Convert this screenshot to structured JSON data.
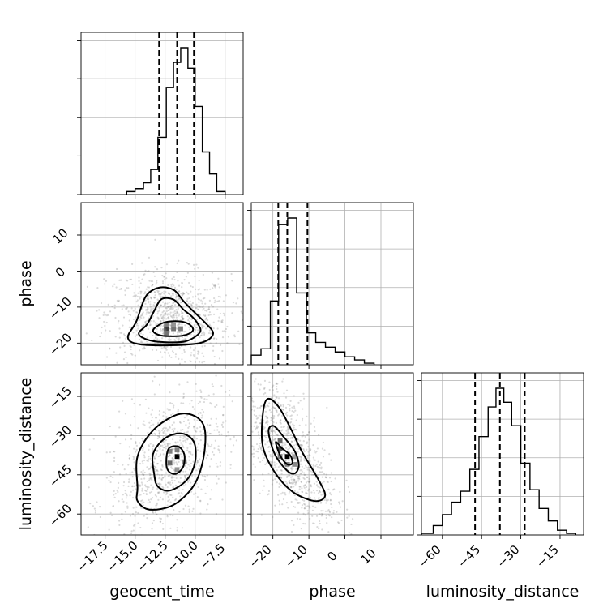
{
  "chart_data": {
    "type": "scatter",
    "variant": "corner",
    "grid": true,
    "parameters": [
      {
        "key": "geocent_time",
        "label": "geocent_time",
        "range": [
          -19.5,
          -6.0
        ],
        "ticks": [
          -17.5,
          -15.0,
          -12.5,
          -10.0,
          -7.5
        ],
        "tick_labels": [
          "−17.5",
          "−15.0",
          "−12.5",
          "−10.0",
          "−7.5"
        ],
        "quantiles": [
          -13.0,
          -11.5,
          -10.1
        ],
        "hist": {
          "bin_edges": [
            -15.7,
            -15.0,
            -14.3,
            -13.7,
            -13.1,
            -12.4,
            -11.8,
            -11.2,
            -10.6,
            -10.0,
            -9.4,
            -8.8,
            -8.2,
            -7.5
          ],
          "counts": [
            0.02,
            0.04,
            0.08,
            0.17,
            0.39,
            0.73,
            0.9,
            1.0,
            0.86,
            0.6,
            0.29,
            0.14,
            0.02
          ]
        }
      },
      {
        "key": "phase",
        "label": "phase",
        "range": [
          -26.0,
          19.0
        ],
        "ticks": [
          -20,
          -10,
          0,
          10
        ],
        "tick_labels": [
          "−20",
          "−10",
          "0",
          "10"
        ],
        "quantiles": [
          -18.5,
          -16.0,
          -10.4
        ],
        "hist": {
          "bin_edges": [
            -26.0,
            -23.3,
            -20.7,
            -18.4,
            -15.9,
            -13.4,
            -10.7,
            -8.1,
            -5.4,
            -2.7,
            0.0,
            2.7,
            5.4,
            8.1
          ],
          "counts": [
            0.06,
            0.1,
            0.4,
            0.88,
            0.92,
            0.45,
            0.2,
            0.14,
            0.11,
            0.08,
            0.05,
            0.03,
            0.01
          ]
        }
      },
      {
        "key": "luminosity_distance",
        "label": "luminosity_distance",
        "range": [
          -68.0,
          -6.0
        ],
        "ticks": [
          -60,
          -45,
          -30,
          -15
        ],
        "tick_labels": [
          "−60",
          "−45",
          "−30",
          "−15"
        ],
        "quantiles": [
          -47.5,
          -38.0,
          -28.5
        ],
        "hist": {
          "bin_edges": [
            -68.0,
            -63.5,
            -60.0,
            -56.5,
            -53.0,
            -49.5,
            -46.0,
            -42.5,
            -39.5,
            -36.5,
            -33.5,
            -30.0,
            -26.5,
            -23.0,
            -19.5,
            -16.0,
            -12.5,
            -9.0
          ],
          "counts": [
            0.01,
            0.06,
            0.13,
            0.21,
            0.28,
            0.42,
            0.63,
            0.82,
            0.94,
            0.85,
            0.7,
            0.46,
            0.29,
            0.17,
            0.09,
            0.03,
            0.01
          ]
        }
      }
    ],
    "pairs": [
      {
        "x": "geocent_time",
        "y": "phase",
        "contours": [
          {
            "level": 1,
            "path": [
              [
                -13.4,
                -15.9
              ],
              [
                -12.5,
                -14.2
              ],
              [
                -11.2,
                -14.0
              ],
              [
                -10.4,
                -15.0
              ],
              [
                -10.2,
                -16.6
              ],
              [
                -11.0,
                -17.9
              ],
              [
                -12.6,
                -18.0
              ],
              [
                -13.4,
                -17.1
              ],
              [
                -13.4,
                -15.9
              ]
            ]
          },
          {
            "level": 2,
            "path": [
              [
                -13.4,
                -11.0
              ],
              [
                -12.8,
                -7.8
              ],
              [
                -11.8,
                -7.9
              ],
              [
                -11.0,
                -10.6
              ],
              [
                -10.3,
                -12.5
              ],
              [
                -9.8,
                -14.5
              ],
              [
                -9.6,
                -17.0
              ],
              [
                -10.8,
                -19.5
              ],
              [
                -12.7,
                -19.7
              ],
              [
                -14.0,
                -19.0
              ],
              [
                -14.7,
                -17.3
              ],
              [
                -14.0,
                -14.8
              ],
              [
                -13.4,
                -11.0
              ]
            ]
          },
          {
            "level": 3,
            "path": [
              [
                -14.1,
                -7.0
              ],
              [
                -13.0,
                -4.6
              ],
              [
                -11.8,
                -5.2
              ],
              [
                -11.0,
                -8.2
              ],
              [
                -10.2,
                -11.0
              ],
              [
                -9.2,
                -14.2
              ],
              [
                -8.5,
                -17.4
              ],
              [
                -9.5,
                -19.9
              ],
              [
                -12.0,
                -20.6
              ],
              [
                -14.7,
                -20.3
              ],
              [
                -15.6,
                -18.4
              ],
              [
                -14.9,
                -14.0
              ],
              [
                -14.1,
                -7.0
              ]
            ]
          }
        ],
        "density_bins": [
          {
            "x": -11.8,
            "y": -16.0,
            "w": 0.5
          },
          {
            "x": -12.4,
            "y": -16.0,
            "w": 0.75
          },
          {
            "x": -12.4,
            "y": -14.9,
            "w": 0.45
          },
          {
            "x": -11.8,
            "y": -14.9,
            "w": 0.35
          },
          {
            "x": -11.2,
            "y": -16.0,
            "w": 0.45
          },
          {
            "x": -12.4,
            "y": -17.2,
            "w": 0.5
          }
        ]
      },
      {
        "x": "geocent_time",
        "y": "luminosity_distance",
        "contours": [
          {
            "level": 1,
            "path": [
              [
                -12.4,
                -40.5
              ],
              [
                -12.2,
                -35.0
              ],
              [
                -11.4,
                -34.2
              ],
              [
                -10.9,
                -37.2
              ],
              [
                -11.0,
                -42.0
              ],
              [
                -11.6,
                -44.6
              ],
              [
                -12.2,
                -43.7
              ],
              [
                -12.4,
                -40.5
              ]
            ]
          },
          {
            "level": 2,
            "path": [
              [
                -13.4,
                -45.0
              ],
              [
                -13.5,
                -37.0
              ],
              [
                -12.5,
                -31.0
              ],
              [
                -11.1,
                -29.2
              ],
              [
                -10.1,
                -32.5
              ],
              [
                -10.0,
                -40.0
              ],
              [
                -10.7,
                -47.0
              ],
              [
                -12.1,
                -51.0
              ],
              [
                -13.1,
                -49.5
              ],
              [
                -13.4,
                -45.0
              ]
            ]
          },
          {
            "level": 3,
            "path": [
              [
                -14.8,
                -50.0
              ],
              [
                -14.8,
                -38.0
              ],
              [
                -13.5,
                -28.0
              ],
              [
                -11.5,
                -22.0
              ],
              [
                -10.0,
                -22.6
              ],
              [
                -9.2,
                -27.5
              ],
              [
                -9.3,
                -38.5
              ],
              [
                -10.1,
                -49.0
              ],
              [
                -11.8,
                -56.5
              ],
              [
                -13.8,
                -58.3
              ],
              [
                -14.8,
                -55.0
              ],
              [
                -14.8,
                -50.0
              ]
            ]
          }
        ],
        "density_bins": [
          {
            "x": -11.5,
            "y": -38.0,
            "w": 1.0
          },
          {
            "x": -12.1,
            "y": -40.5,
            "w": 0.55
          },
          {
            "x": -11.5,
            "y": -35.5,
            "w": 0.45
          },
          {
            "x": -12.1,
            "y": -36.0,
            "w": 0.45
          },
          {
            "x": -10.9,
            "y": -40.0,
            "w": 0.4
          },
          {
            "x": -11.5,
            "y": -43.0,
            "w": 0.35
          }
        ]
      },
      {
        "x": "phase",
        "y": "luminosity_distance",
        "contours": [
          {
            "level": 1,
            "path": [
              [
                -19.2,
                -32.5
              ],
              [
                -17.5,
                -34.8
              ],
              [
                -15.2,
                -37.5
              ],
              [
                -14.6,
                -40.5
              ],
              [
                -16.0,
                -41.0
              ],
              [
                -17.9,
                -37.8
              ],
              [
                -19.2,
                -32.5
              ]
            ]
          },
          {
            "level": 2,
            "path": [
              [
                -21.2,
                -28.5
              ],
              [
                -19.8,
                -26.3
              ],
              [
                -17.0,
                -30.5
              ],
              [
                -13.9,
                -36.0
              ],
              [
                -12.8,
                -41.5
              ],
              [
                -14.0,
                -44.5
              ],
              [
                -16.2,
                -43.2
              ],
              [
                -19.5,
                -37.0
              ],
              [
                -21.2,
                -28.5
              ]
            ]
          },
          {
            "level": 3,
            "path": [
              [
                -22.8,
                -22.0
              ],
              [
                -21.5,
                -16.0
              ],
              [
                -18.4,
                -19.0
              ],
              [
                -14.8,
                -28.0
              ],
              [
                -12.0,
                -36.0
              ],
              [
                -7.5,
                -46.5
              ],
              [
                -5.5,
                -53.0
              ],
              [
                -8.5,
                -55.0
              ],
              [
                -14.5,
                -51.5
              ],
              [
                -19.5,
                -44.0
              ],
              [
                -22.8,
                -34.0
              ],
              [
                -22.8,
                -22.0
              ]
            ]
          }
        ],
        "density_bins": [
          {
            "x": -16.0,
            "y": -38.0,
            "w": 1.0
          },
          {
            "x": -18.0,
            "y": -35.0,
            "w": 0.7
          },
          {
            "x": -18.0,
            "y": -32.0,
            "w": 0.55
          },
          {
            "x": -16.0,
            "y": -41.0,
            "w": 0.45
          },
          {
            "x": -14.0,
            "y": -41.0,
            "w": 0.4
          },
          {
            "x": -14.0,
            "y": -38.0,
            "w": 0.3
          },
          {
            "x": -18.0,
            "y": -38.0,
            "w": 0.45
          }
        ]
      }
    ]
  }
}
